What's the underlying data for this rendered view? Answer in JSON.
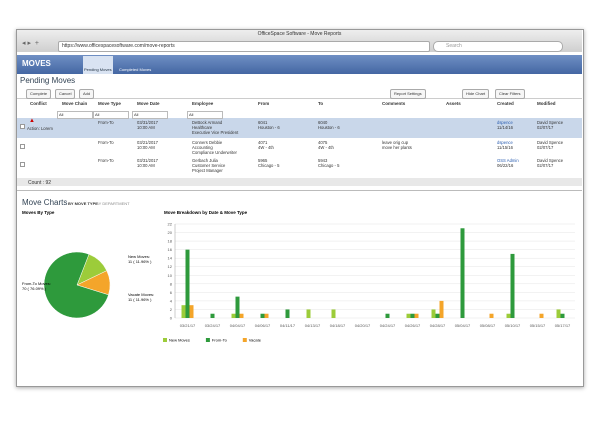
{
  "browser": {
    "title": "OfficeSpace Software - Move Reports",
    "url": "https://www.officespacesoftware.com/move-reports",
    "search": "Search"
  },
  "app": {
    "name": "MOVES",
    "tabs": [
      "Pending Moves",
      "Completed Moves"
    ]
  },
  "page": {
    "title": "Pending Moves",
    "buttons": [
      "Complete",
      "Cancel",
      "Add"
    ],
    "tools": [
      "Report Settings",
      "Hide Chart",
      "Clear Filters"
    ]
  },
  "table": {
    "columns": [
      "Conflict",
      "Move Chain",
      "Move Type",
      "Move Date",
      "Employee",
      "From",
      "To",
      "Comments",
      "Assets",
      "Created",
      "Modified"
    ],
    "filter": "All",
    "rows": [
      {
        "conflict": "Action: Lorem",
        "type": "From-To",
        "date": [
          "03/31/2017",
          "10:00 AM"
        ],
        "employee": [
          "DeBock Armand",
          "Healthcare",
          "Executive Vice President"
        ],
        "from": [
          "6041",
          "Houston - 6"
        ],
        "to": [
          "6040",
          "Houston - 6"
        ],
        "created": [
          "dspence",
          "11/14/16"
        ],
        "modified": [
          "David Spence",
          "02/07/17"
        ]
      },
      {
        "type": "From-To",
        "date": [
          "03/21/2017",
          "10:00 AM"
        ],
        "employee": [
          "Conners Debbie",
          "Accounting",
          "Compliance Underwriter"
        ],
        "from": [
          "4071",
          "4W - 4th"
        ],
        "to": [
          "4075",
          "4W - 4th"
        ],
        "comments": [
          "leave orig cup",
          "move her plants"
        ],
        "created": [
          "dspence",
          "11/15/16"
        ],
        "modified": [
          "David Spence",
          "02/07/17"
        ]
      },
      {
        "type": "From-To",
        "date": [
          "03/31/2017",
          "10:00 AM"
        ],
        "employee": [
          "Gerbach Julia",
          "Customer Service",
          "Project Manager"
        ],
        "from": [
          "5965",
          "Chicago - 5"
        ],
        "to": [
          "5943",
          "Chicago - 5"
        ],
        "created": [
          "OSS Admin",
          "06/22/16"
        ],
        "modified": [
          "David Spence",
          "02/07/17"
        ]
      }
    ],
    "count": "Count : 92"
  },
  "charts": {
    "title": "Move Charts",
    "tabs": [
      "BY MOVE TYPE",
      "BY DEPARTMENT"
    ]
  },
  "chart_data": [
    {
      "type": "pie",
      "title": "Moves By Type",
      "categories": [
        "New Moves:",
        "Vacate Moves:",
        "From-To Moves:"
      ],
      "values": [
        11,
        11,
        70
      ],
      "value_labels": [
        "11 ( 11.96% )",
        "11 ( 11.96% )",
        "70 ( 76.09% )"
      ],
      "colors": [
        "#9ccc3a",
        "#f4a52a",
        "#2e9a3c"
      ]
    },
    {
      "type": "bar",
      "title": "Move Breakdown by Date & Move Type",
      "categories": [
        "03/21/17",
        "03/24/17",
        "04/04/17",
        "04/06/17",
        "04/11/17",
        "04/13/17",
        "04/18/17",
        "04/20/17",
        "04/24/17",
        "04/26/17",
        "04/28/17",
        "05/04/17",
        "05/08/17",
        "05/10/17",
        "05/15/17",
        "05/17/17"
      ],
      "series": [
        {
          "name": "New Moves",
          "color": "#9ccc3a",
          "values": [
            3,
            0,
            1,
            0,
            0,
            2,
            2,
            0,
            0,
            1,
            2,
            0,
            0,
            1,
            0,
            2
          ]
        },
        {
          "name": "From-To",
          "color": "#2e9a3c",
          "values": [
            16,
            1,
            5,
            1,
            2,
            0,
            0,
            0,
            1,
            1,
            1,
            21,
            0,
            15,
            0,
            1
          ]
        },
        {
          "name": "Vacate",
          "color": "#f4a52a",
          "values": [
            3,
            0,
            1,
            1,
            0,
            0,
            0,
            0,
            0,
            1,
            4,
            0,
            1,
            0,
            1,
            0
          ]
        }
      ],
      "ylim": [
        0,
        22
      ],
      "yticks": [
        0,
        2,
        4,
        6,
        8,
        10,
        12,
        14,
        16,
        18,
        20,
        22
      ],
      "grid": true
    }
  ]
}
